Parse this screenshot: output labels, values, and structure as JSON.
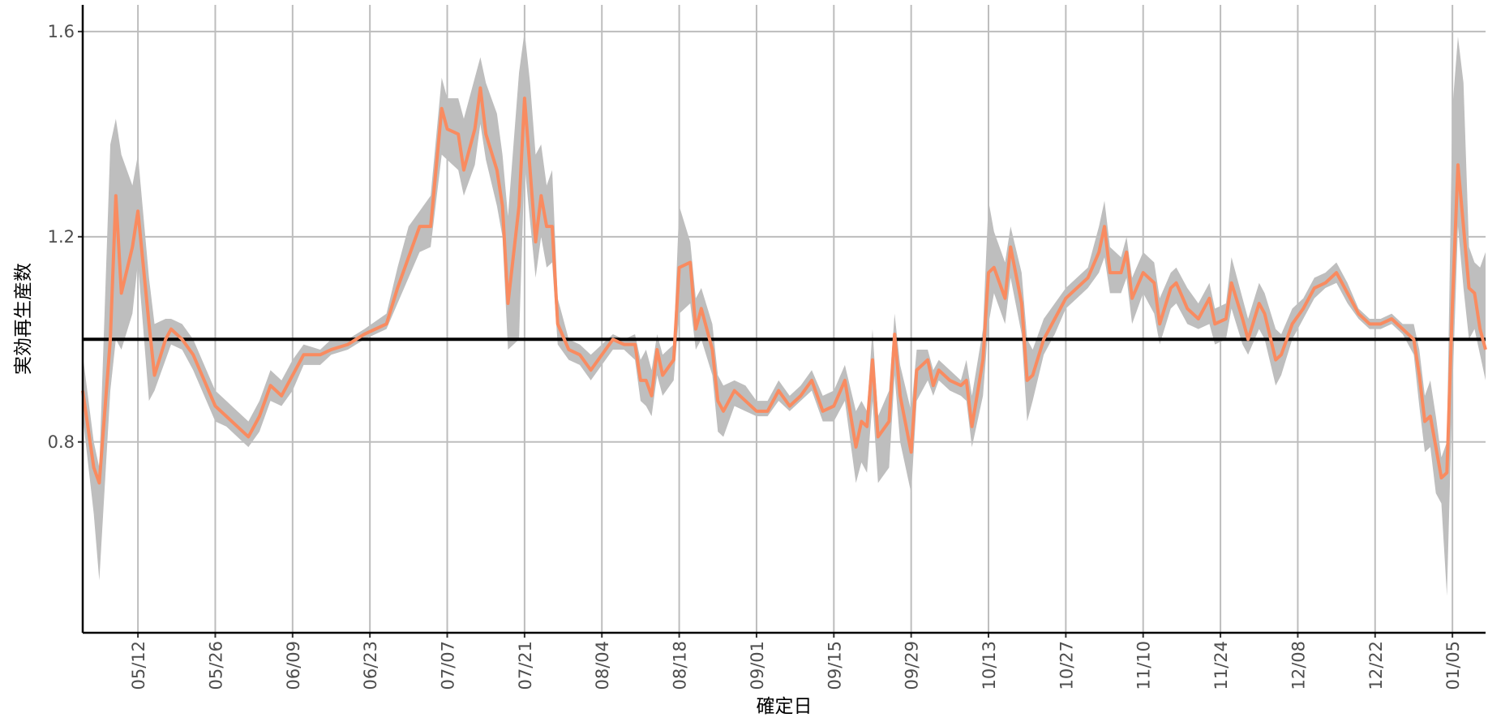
{
  "chart_data": {
    "type": "line",
    "x_label": "確定日",
    "y_label": "実効再生産数",
    "x": [
      "05/02",
      "05/04",
      "05/05",
      "05/07",
      "05/08",
      "05/09",
      "05/11",
      "05/12",
      "05/14",
      "05/15",
      "05/17",
      "05/18",
      "05/20",
      "05/22",
      "05/24",
      "05/26",
      "05/28",
      "05/30",
      "06/01",
      "06/03",
      "06/05",
      "06/07",
      "06/09",
      "06/11",
      "06/14",
      "06/16",
      "06/19",
      "06/22",
      "06/26",
      "06/28",
      "06/30",
      "07/02",
      "07/04",
      "07/06",
      "07/07",
      "07/09",
      "07/10",
      "07/12",
      "07/13",
      "07/14",
      "07/16",
      "07/17",
      "07/18",
      "07/20",
      "07/21",
      "07/22",
      "07/23",
      "07/24",
      "07/25",
      "07/26",
      "07/27",
      "07/29",
      "07/31",
      "08/02",
      "08/04",
      "08/06",
      "08/08",
      "08/10",
      "08/11",
      "08/12",
      "08/13",
      "08/14",
      "08/15",
      "08/17",
      "08/18",
      "08/20",
      "08/21",
      "08/22",
      "08/24",
      "08/25",
      "08/26",
      "08/28",
      "08/30",
      "09/01",
      "09/03",
      "09/05",
      "09/07",
      "09/09",
      "09/11",
      "09/13",
      "09/15",
      "09/17",
      "09/19",
      "09/20",
      "09/21",
      "09/22",
      "09/23",
      "09/25",
      "09/26",
      "09/27",
      "09/29",
      "09/30",
      "10/02",
      "10/03",
      "10/04",
      "10/06",
      "10/08",
      "10/09",
      "10/10",
      "10/12",
      "10/13",
      "10/14",
      "10/16",
      "10/17",
      "10/19",
      "10/20",
      "10/21",
      "10/23",
      "10/25",
      "10/27",
      "10/29",
      "10/31",
      "11/02",
      "11/03",
      "11/04",
      "11/06",
      "11/07",
      "11/08",
      "11/10",
      "11/12",
      "11/13",
      "11/15",
      "11/16",
      "11/18",
      "11/20",
      "11/22",
      "11/23",
      "11/25",
      "11/26",
      "11/28",
      "11/29",
      "12/01",
      "12/02",
      "12/04",
      "12/05",
      "12/07",
      "12/09",
      "12/11",
      "12/13",
      "12/15",
      "12/17",
      "12/19",
      "12/21",
      "12/23",
      "12/25",
      "12/27",
      "12/29",
      "12/30",
      "12/31",
      "01/01",
      "01/02",
      "01/03",
      "01/04",
      "01/05",
      "01/06",
      "01/07",
      "01/08",
      "01/09",
      "01/10",
      "01/11"
    ],
    "series": [
      {
        "color": "#f98b60",
        "band_color": "#bebebe",
        "values": [
          0.9,
          0.75,
          0.72,
          1.0,
          1.28,
          1.09,
          1.18,
          1.25,
          1.03,
          0.93,
          1.0,
          1.02,
          1.0,
          0.97,
          0.92,
          0.87,
          0.85,
          0.83,
          0.81,
          0.85,
          0.91,
          0.89,
          0.93,
          0.97,
          0.97,
          0.98,
          0.99,
          1.01,
          1.03,
          1.1,
          1.16,
          1.22,
          1.22,
          1.45,
          1.41,
          1.4,
          1.33,
          1.41,
          1.49,
          1.4,
          1.33,
          1.26,
          1.07,
          1.26,
          1.47,
          1.33,
          1.19,
          1.28,
          1.22,
          1.22,
          1.03,
          0.98,
          0.97,
          0.94,
          0.97,
          1.0,
          0.99,
          0.99,
          0.92,
          0.92,
          0.89,
          0.98,
          0.93,
          0.96,
          1.14,
          1.15,
          1.02,
          1.06,
          0.98,
          0.88,
          0.86,
          0.9,
          0.88,
          0.86,
          0.86,
          0.9,
          0.87,
          0.89,
          0.92,
          0.86,
          0.87,
          0.92,
          0.79,
          0.84,
          0.83,
          0.96,
          0.81,
          0.84,
          1.01,
          0.89,
          0.78,
          0.94,
          0.96,
          0.91,
          0.94,
          0.92,
          0.91,
          0.92,
          0.83,
          0.96,
          1.13,
          1.14,
          1.08,
          1.18,
          1.07,
          0.92,
          0.93,
          1.0,
          1.04,
          1.08,
          1.1,
          1.12,
          1.17,
          1.22,
          1.13,
          1.13,
          1.17,
          1.08,
          1.13,
          1.11,
          1.03,
          1.1,
          1.11,
          1.06,
          1.04,
          1.08,
          1.03,
          1.04,
          1.11,
          1.04,
          1.0,
          1.07,
          1.05,
          0.96,
          0.97,
          1.03,
          1.06,
          1.1,
          1.11,
          1.13,
          1.09,
          1.05,
          1.03,
          1.03,
          1.04,
          1.02,
          1.0,
          0.93,
          0.84,
          0.85,
          0.79,
          0.73,
          0.74,
          1.07,
          1.34,
          1.22,
          1.1,
          1.09,
          1.02,
          0.98
        ],
        "lower": [
          0.85,
          0.66,
          0.53,
          0.9,
          1.0,
          0.98,
          1.05,
          1.15,
          0.88,
          0.9,
          0.96,
          0.99,
          0.98,
          0.94,
          0.89,
          0.84,
          0.83,
          0.81,
          0.79,
          0.82,
          0.88,
          0.87,
          0.9,
          0.95,
          0.95,
          0.97,
          0.98,
          1.0,
          1.02,
          1.07,
          1.12,
          1.17,
          1.18,
          1.36,
          1.35,
          1.33,
          1.28,
          1.34,
          1.42,
          1.35,
          1.26,
          1.2,
          0.98,
          1.0,
          1.34,
          1.23,
          1.12,
          1.2,
          1.14,
          1.15,
          0.99,
          0.96,
          0.95,
          0.92,
          0.95,
          0.98,
          0.98,
          0.96,
          0.88,
          0.87,
          0.85,
          0.93,
          0.89,
          0.92,
          1.05,
          1.07,
          0.98,
          1.0,
          0.93,
          0.82,
          0.81,
          0.87,
          0.86,
          0.85,
          0.85,
          0.88,
          0.86,
          0.88,
          0.9,
          0.84,
          0.84,
          0.88,
          0.72,
          0.76,
          0.74,
          0.88,
          0.72,
          0.75,
          0.93,
          0.8,
          0.7,
          0.88,
          0.92,
          0.89,
          0.92,
          0.9,
          0.89,
          0.88,
          0.79,
          0.89,
          1.03,
          1.09,
          1.03,
          1.12,
          1.01,
          0.84,
          0.88,
          0.97,
          1.01,
          1.06,
          1.08,
          1.1,
          1.13,
          1.16,
          1.09,
          1.09,
          1.12,
          1.03,
          1.09,
          1.05,
          0.99,
          1.06,
          1.07,
          1.03,
          1.02,
          1.03,
          0.99,
          1.0,
          1.06,
          0.99,
          0.97,
          1.02,
          1.0,
          0.91,
          0.93,
          1.0,
          1.04,
          1.08,
          1.1,
          1.11,
          1.07,
          1.04,
          1.02,
          1.02,
          1.03,
          1.01,
          0.97,
          0.87,
          0.78,
          0.79,
          0.7,
          0.68,
          0.5,
          0.9,
          1.22,
          1.1,
          1.0,
          1.02,
          0.97,
          0.92
        ],
        "upper": [
          0.97,
          0.8,
          0.75,
          1.38,
          1.43,
          1.36,
          1.3,
          1.36,
          1.12,
          1.03,
          1.04,
          1.04,
          1.03,
          1.0,
          0.95,
          0.9,
          0.88,
          0.86,
          0.84,
          0.88,
          0.94,
          0.92,
          0.96,
          0.99,
          0.98,
          1.0,
          1.0,
          1.02,
          1.05,
          1.14,
          1.22,
          1.25,
          1.28,
          1.51,
          1.47,
          1.47,
          1.43,
          1.51,
          1.55,
          1.5,
          1.44,
          1.36,
          1.24,
          1.52,
          1.6,
          1.5,
          1.36,
          1.38,
          1.3,
          1.33,
          1.08,
          1.0,
          0.99,
          0.97,
          0.99,
          1.01,
          1.0,
          1.01,
          0.96,
          0.98,
          0.94,
          1.01,
          0.97,
          0.99,
          1.26,
          1.19,
          1.08,
          1.1,
          1.03,
          0.93,
          0.91,
          0.92,
          0.91,
          0.88,
          0.88,
          0.92,
          0.89,
          0.91,
          0.94,
          0.89,
          0.9,
          0.95,
          0.86,
          0.88,
          0.86,
          1.02,
          0.85,
          0.9,
          1.05,
          0.95,
          0.86,
          0.98,
          0.98,
          0.94,
          0.96,
          0.94,
          0.92,
          0.96,
          0.89,
          1.02,
          1.27,
          1.21,
          1.15,
          1.22,
          1.13,
          1.0,
          0.98,
          1.04,
          1.07,
          1.1,
          1.12,
          1.14,
          1.22,
          1.27,
          1.18,
          1.16,
          1.2,
          1.12,
          1.17,
          1.15,
          1.08,
          1.13,
          1.14,
          1.1,
          1.07,
          1.11,
          1.06,
          1.07,
          1.16,
          1.08,
          1.04,
          1.11,
          1.09,
          1.02,
          1.01,
          1.06,
          1.08,
          1.12,
          1.13,
          1.15,
          1.11,
          1.06,
          1.04,
          1.04,
          1.05,
          1.03,
          1.03,
          0.98,
          0.89,
          0.92,
          0.85,
          0.77,
          0.8,
          1.45,
          1.59,
          1.5,
          1.18,
          1.15,
          1.14,
          1.17
        ]
      }
    ],
    "reference_line": 1,
    "reference_color": "#000000",
    "xlim": [
      "05/02",
      "01/11"
    ],
    "xticks": [
      "05/12",
      "05/26",
      "06/09",
      "06/23",
      "07/07",
      "07/21",
      "08/04",
      "08/18",
      "09/01",
      "09/15",
      "09/29",
      "10/13",
      "10/27",
      "11/10",
      "11/24",
      "12/08",
      "12/22",
      "01/05"
    ],
    "ylim": [
      0.428,
      1.652
    ],
    "yticks": [
      0.8,
      1.2,
      1.6
    ],
    "grid": true
  }
}
